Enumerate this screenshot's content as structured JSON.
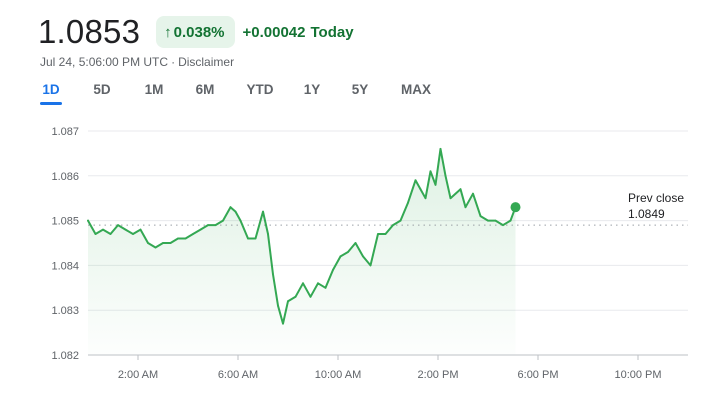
{
  "quote": {
    "price": "1.0853",
    "change_percent": "0.038%",
    "change_abs": "+0.00042",
    "change_period": "Today",
    "timestamp": "Jul 24, 5:06:00 PM UTC",
    "separator": "·",
    "disclaimer": "Disclaimer",
    "up_color": "#137333",
    "up_bg": "#e6f4ea"
  },
  "tabs": [
    {
      "label": "1D",
      "active": true
    },
    {
      "label": "5D",
      "active": false
    },
    {
      "label": "1M",
      "active": false
    },
    {
      "label": "6M",
      "active": false
    },
    {
      "label": "YTD",
      "active": false
    },
    {
      "label": "1Y",
      "active": false
    },
    {
      "label": "5Y",
      "active": false
    },
    {
      "label": "MAX",
      "active": false
    }
  ],
  "prev_close": {
    "label": "Prev close",
    "value": "1.0849"
  },
  "chart_data": {
    "type": "line",
    "x_unit": "hours (UTC)",
    "xlim": [
      0,
      24
    ],
    "ylim": [
      1.082,
      1.087
    ],
    "y_ticks": [
      1.082,
      1.083,
      1.084,
      1.085,
      1.086,
      1.087
    ],
    "y_tick_labels": [
      "1.082",
      "1.083",
      "1.084",
      "1.085",
      "1.086",
      "1.087"
    ],
    "x_ticks": [
      2,
      6,
      10,
      14,
      18,
      22
    ],
    "x_tick_labels": [
      "2:00 AM",
      "6:00 AM",
      "10:00 AM",
      "2:00 PM",
      "6:00 PM",
      "10:00 PM"
    ],
    "grid": true,
    "reference_line": 1.0849,
    "line_color": "#34a853",
    "fill_color": "#34a853",
    "series": [
      {
        "x": [
          0.0,
          0.3,
          0.6,
          0.9,
          1.2,
          1.5,
          1.8,
          2.1,
          2.4,
          2.7,
          3.0,
          3.3,
          3.6,
          3.9,
          4.2,
          4.5,
          4.8,
          5.1,
          5.4,
          5.7,
          5.9,
          6.1,
          6.4,
          6.7,
          7.0,
          7.2,
          7.4,
          7.6,
          7.8,
          8.0,
          8.3,
          8.6,
          8.9,
          9.2,
          9.5,
          9.8,
          10.1,
          10.4,
          10.7,
          11.0,
          11.3,
          11.6,
          11.9,
          12.2,
          12.5,
          12.8,
          13.1,
          13.3,
          13.5,
          13.7,
          13.9,
          14.1,
          14.3,
          14.5,
          14.7,
          14.9,
          15.1,
          15.4,
          15.7,
          16.0,
          16.3,
          16.6,
          16.9,
          17.1
        ],
        "y": [
          1.085,
          1.0847,
          1.0848,
          1.0847,
          1.0849,
          1.0848,
          1.0847,
          1.0848,
          1.0845,
          1.0844,
          1.0845,
          1.0845,
          1.0846,
          1.0846,
          1.0847,
          1.0848,
          1.0849,
          1.0849,
          1.085,
          1.0853,
          1.0852,
          1.085,
          1.0846,
          1.0846,
          1.0852,
          1.0847,
          1.0838,
          1.0831,
          1.0827,
          1.0832,
          1.0833,
          1.0836,
          1.0833,
          1.0836,
          1.0835,
          1.0839,
          1.0842,
          1.0843,
          1.0845,
          1.0842,
          1.084,
          1.0847,
          1.0847,
          1.0849,
          1.085,
          1.0854,
          1.0859,
          1.0857,
          1.0855,
          1.0861,
          1.0858,
          1.0866,
          1.086,
          1.0855,
          1.0856,
          1.0857,
          1.0853,
          1.0856,
          1.0851,
          1.085,
          1.085,
          1.0849,
          1.085,
          1.0853
        ]
      }
    ]
  }
}
